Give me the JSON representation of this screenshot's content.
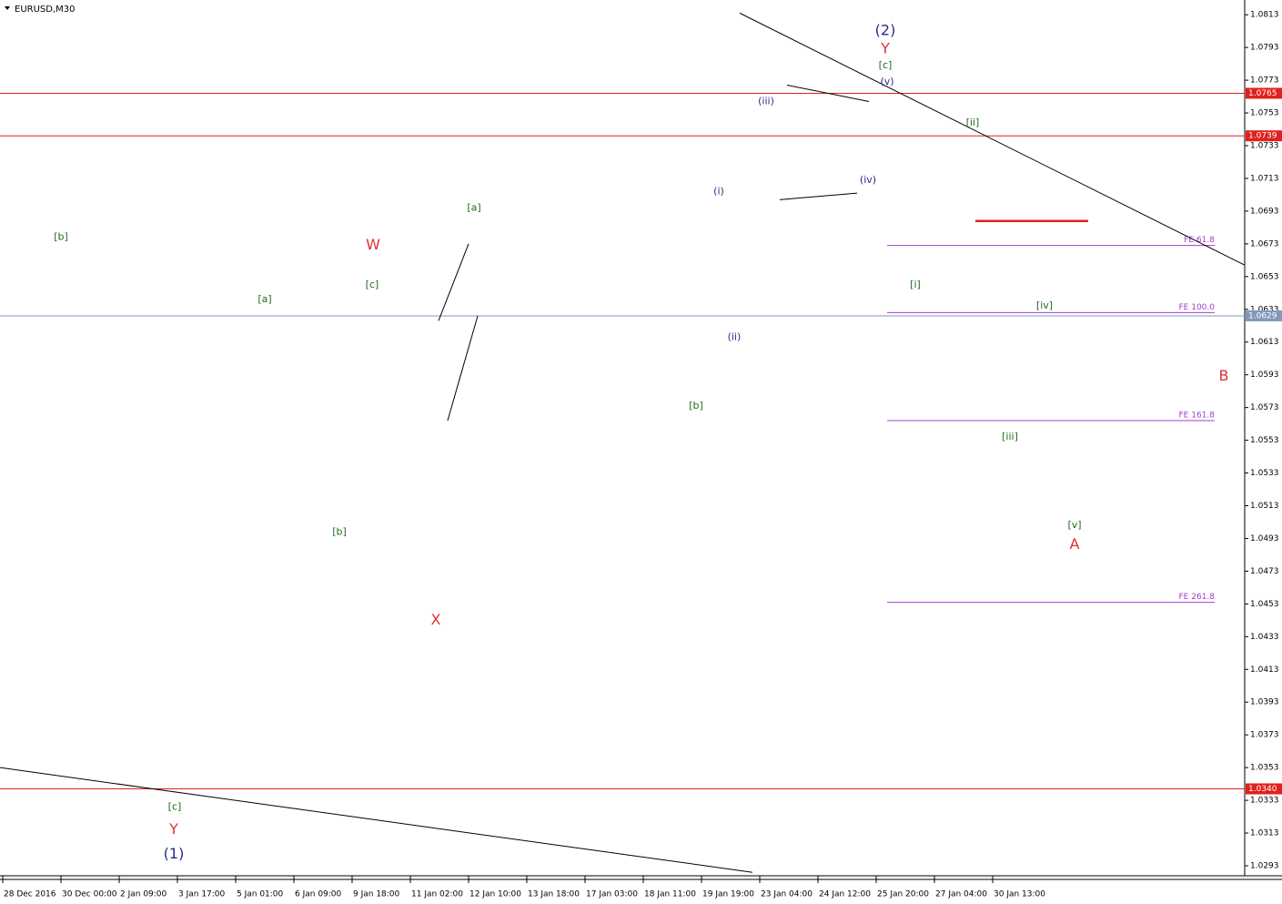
{
  "chart_data": {
    "type": "line",
    "title": "EURUSD,M30",
    "xlim": [
      -3,
      1365
    ],
    "ylim": [
      1.0288,
      1.0822
    ],
    "xticks": [
      {
        "value": 0,
        "label": "28 Dec 2016"
      },
      {
        "value": 64,
        "label": "30 Dec 00:00"
      },
      {
        "value": 128,
        "label": "2 Jan 09:00"
      },
      {
        "value": 192,
        "label": "3 Jan 17:00"
      },
      {
        "value": 256,
        "label": "5 Jan 01:00"
      },
      {
        "value": 320,
        "label": "6 Jan 09:00"
      },
      {
        "value": 384,
        "label": "9 Jan 18:00"
      },
      {
        "value": 448,
        "label": "11 Jan 02:00"
      },
      {
        "value": 512,
        "label": "12 Jan 10:00"
      },
      {
        "value": 576,
        "label": "13 Jan 18:00"
      },
      {
        "value": 640,
        "label": "17 Jan 03:00"
      },
      {
        "value": 704,
        "label": "18 Jan 11:00"
      },
      {
        "value": 768,
        "label": "19 Jan 19:00"
      },
      {
        "value": 832,
        "label": "23 Jan 04:00"
      },
      {
        "value": 896,
        "label": "24 Jan 12:00"
      },
      {
        "value": 960,
        "label": "25 Jan 20:00"
      },
      {
        "value": 1024,
        "label": "27 Jan 04:00"
      },
      {
        "value": 1088,
        "label": "30 Jan 13:00"
      }
    ],
    "yticks": [
      1.0813,
      1.0793,
      1.0773,
      1.0753,
      1.0733,
      1.0713,
      1.0693,
      1.0673,
      1.0653,
      1.0633,
      1.0613,
      1.0593,
      1.0573,
      1.0553,
      1.0533,
      1.0513,
      1.0493,
      1.0473,
      1.0453,
      1.0433,
      1.0413,
      1.0393,
      1.0373,
      1.0353,
      1.0333,
      1.0313,
      1.0293
    ],
    "series": [
      {
        "color": "#000000",
        "x": [
          0,
          12,
          27,
          42,
          57,
          65,
          69,
          77,
          87,
          97,
          112,
          127,
          137,
          152,
          162,
          172,
          177,
          184,
          189,
          193,
          202,
          212,
          222,
          232,
          242,
          252,
          262,
          272,
          280,
          287,
          297,
          307,
          317,
          327,
          332,
          342,
          352,
          362,
          372,
          382,
          392,
          402,
          412,
          422,
          432,
          442,
          452,
          462,
          469,
          477,
          482,
          489,
          497,
          507,
          512,
          519,
          527,
          537,
          547,
          557,
          567,
          577,
          587,
          597,
          607,
          617,
          627,
          637,
          647,
          657,
          662,
          669,
          677,
          687,
          697,
          707,
          717,
          727,
          737,
          747,
          757,
          762,
          769,
          777,
          787,
          797,
          805,
          812,
          819,
          827,
          833,
          842,
          852,
          862,
          872,
          882,
          892,
          902,
          912,
          922,
          932,
          942,
          947,
          957,
          967,
          977,
          987,
          997,
          1002,
          1009,
          1017,
          1027,
          1032,
          1037,
          1047,
          1057,
          1062,
          1069,
          1077,
          1082,
          1087,
          1090
        ],
        "values": [
          1.0377,
          1.0433,
          1.0461,
          1.0488,
          1.0494,
          1.0653,
          1.0572,
          1.0527,
          1.0555,
          1.0533,
          1.0522,
          1.0511,
          1.0477,
          1.0461,
          1.0477,
          1.0488,
          1.0444,
          1.0394,
          1.0344,
          1.0422,
          1.0411,
          1.0394,
          1.0422,
          1.0444,
          1.0477,
          1.05,
          1.0522,
          1.0561,
          1.0494,
          1.06,
          1.0605,
          1.0589,
          1.0594,
          1.06,
          1.0572,
          1.0533,
          1.0527,
          1.0533,
          1.0514,
          1.0561,
          1.0583,
          1.0617,
          1.06,
          1.0583,
          1.0561,
          1.0555,
          1.055,
          1.0539,
          1.0511,
          1.0455,
          1.0572,
          1.0589,
          1.0589,
          1.0628,
          1.065,
          1.0683,
          1.0644,
          1.0617,
          1.0608,
          1.0628,
          1.0639,
          1.0622,
          1.0633,
          1.0617,
          1.0589,
          1.0594,
          1.06,
          1.0611,
          1.0639,
          1.0678,
          1.0714,
          1.0694,
          1.0711,
          1.0694,
          1.0689,
          1.0694,
          1.0672,
          1.0644,
          1.0628,
          1.0656,
          1.0672,
          1.0589,
          1.065,
          1.0661,
          1.0683,
          1.0639,
          1.0628,
          1.0661,
          1.07,
          1.0722,
          1.075,
          1.0739,
          1.0728,
          1.0745,
          1.0761,
          1.0745,
          1.075,
          1.0761,
          1.0728,
          1.0731,
          1.0733,
          1.0717,
          1.0761,
          1.0728,
          1.0761,
          1.0756,
          1.0733,
          1.07,
          1.0661,
          1.0683,
          1.0678,
          1.0672,
          1.0661,
          1.0689,
          1.0706,
          1.0711,
          1.07,
          1.0736,
          1.0717,
          1.0689,
          1.0667,
          1.0622
        ]
      },
      {
        "color": "#9b30d0",
        "x": [
          1095,
          1109,
          1149,
          1180,
          1342,
          1365
        ],
        "values": [
          1.0636,
          1.0565,
          1.0628,
          1.0509,
          1.0582,
          1.0547
        ]
      }
    ],
    "levels": [
      {
        "value": 1.0765,
        "color": "#e0211d"
      },
      {
        "value": 1.0739,
        "color": "#e0211d"
      },
      {
        "value": 1.0629,
        "color": "#8299bd"
      },
      {
        "value": 1.034,
        "label": "1.0340",
        "color": "#e0211d"
      }
    ],
    "fib_levels": [
      {
        "label": "FE 61.8",
        "value": 1.0672,
        "x": [
          972,
          1332
        ]
      },
      {
        "label": "FE 100.0",
        "value": 1.0631,
        "x": [
          972,
          1332
        ]
      },
      {
        "label": "FE 161.8",
        "value": 1.0565,
        "x": [
          972,
          1332
        ]
      },
      {
        "label": "FE 261.8",
        "value": 1.0454,
        "x": [
          972,
          1332
        ]
      }
    ],
    "fib_color": "#a040c8",
    "lines": [
      {
        "x": [
          810,
          1365
        ],
        "values": [
          1.0814,
          1.066
        ],
        "color": "#000000"
      },
      {
        "x": [
          -3,
          824
        ],
        "values": [
          1.0353,
          1.0289
        ],
        "color": "#000000"
      },
      {
        "x": [
          862,
          952
        ],
        "values": [
          1.077,
          1.076
        ],
        "color": "#000000"
      },
      {
        "x": [
          854,
          939
        ],
        "values": [
          1.07,
          1.0704
        ],
        "color": "#000000"
      },
      {
        "x": [
          479,
          512
        ],
        "values": [
          1.0626,
          1.0673
        ],
        "color": "#000000"
      },
      {
        "x": [
          489,
          522
        ],
        "values": [
          1.0565,
          1.0629
        ],
        "color": "#000000"
      },
      {
        "x": [
          1069,
          1193
        ],
        "values": [
          1.0687,
          1.0687
        ],
        "color": "#e0211d"
      }
    ],
    "annotations": [
      {
        "text": "[b]",
        "x": 64,
        "y": 1.0677,
        "color": "#1e6b1e"
      },
      {
        "text": "(1)",
        "x": 188,
        "y": 1.03,
        "color": "#2b2b8a"
      },
      {
        "text": "Y",
        "x": 188,
        "y": 1.0315,
        "color": "#e03030"
      },
      {
        "text": "[c]",
        "x": 189,
        "y": 1.0329,
        "color": "#1e6b1e"
      },
      {
        "text": "[a]",
        "x": 288,
        "y": 1.0639,
        "color": "#1e6b1e"
      },
      {
        "text": "[b]",
        "x": 370,
        "y": 1.0497,
        "color": "#1e6b1e"
      },
      {
        "text": "W",
        "x": 407,
        "y": 1.0672,
        "color": "#e03030"
      },
      {
        "text": "[c]",
        "x": 406,
        "y": 1.0648,
        "color": "#1e6b1e"
      },
      {
        "text": "X",
        "x": 476,
        "y": 1.0443,
        "color": "#e03030"
      },
      {
        "text": "[a]",
        "x": 518,
        "y": 1.0695,
        "color": "#1e6b1e"
      },
      {
        "text": "[b]",
        "x": 762,
        "y": 1.0574,
        "color": "#1e6b1e"
      },
      {
        "text": "(i)",
        "x": 787,
        "y": 1.0705,
        "color": "#2b2b8a"
      },
      {
        "text": "(ii)",
        "x": 804,
        "y": 1.0616,
        "color": "#2b2b8a"
      },
      {
        "text": "(iii)",
        "x": 839,
        "y": 1.076,
        "color": "#2b2b8a"
      },
      {
        "text": "(iv)",
        "x": 951,
        "y": 1.0712,
        "color": "#2b2b8a"
      },
      {
        "text": "(v)",
        "x": 972,
        "y": 1.0772,
        "color": "#2b2b8a"
      },
      {
        "text": "[c]",
        "x": 970,
        "y": 1.0782,
        "color": "#1e6b1e"
      },
      {
        "text": "Y",
        "x": 970,
        "y": 1.0792,
        "color": "#e03030"
      },
      {
        "text": "(2)",
        "x": 970,
        "y": 1.0803,
        "color": "#2b2b8a"
      },
      {
        "text": "[ii]",
        "x": 1066,
        "y": 1.0747,
        "color": "#1e6b1e"
      },
      {
        "text": "[i]",
        "x": 1003,
        "y": 1.0648,
        "color": "#1e6b1e"
      },
      {
        "text": "[iii]",
        "x": 1107,
        "y": 1.0555,
        "color": "#1e6b1e"
      },
      {
        "text": "[iv]",
        "x": 1145,
        "y": 1.0635,
        "color": "#1e6b1e"
      },
      {
        "text": "[v]",
        "x": 1178,
        "y": 1.0501,
        "color": "#1e6b1e"
      },
      {
        "text": "A",
        "x": 1178,
        "y": 1.0489,
        "color": "#e03030"
      },
      {
        "text": "B",
        "x": 1342,
        "y": 1.0592,
        "color": "#e03030"
      }
    ]
  }
}
